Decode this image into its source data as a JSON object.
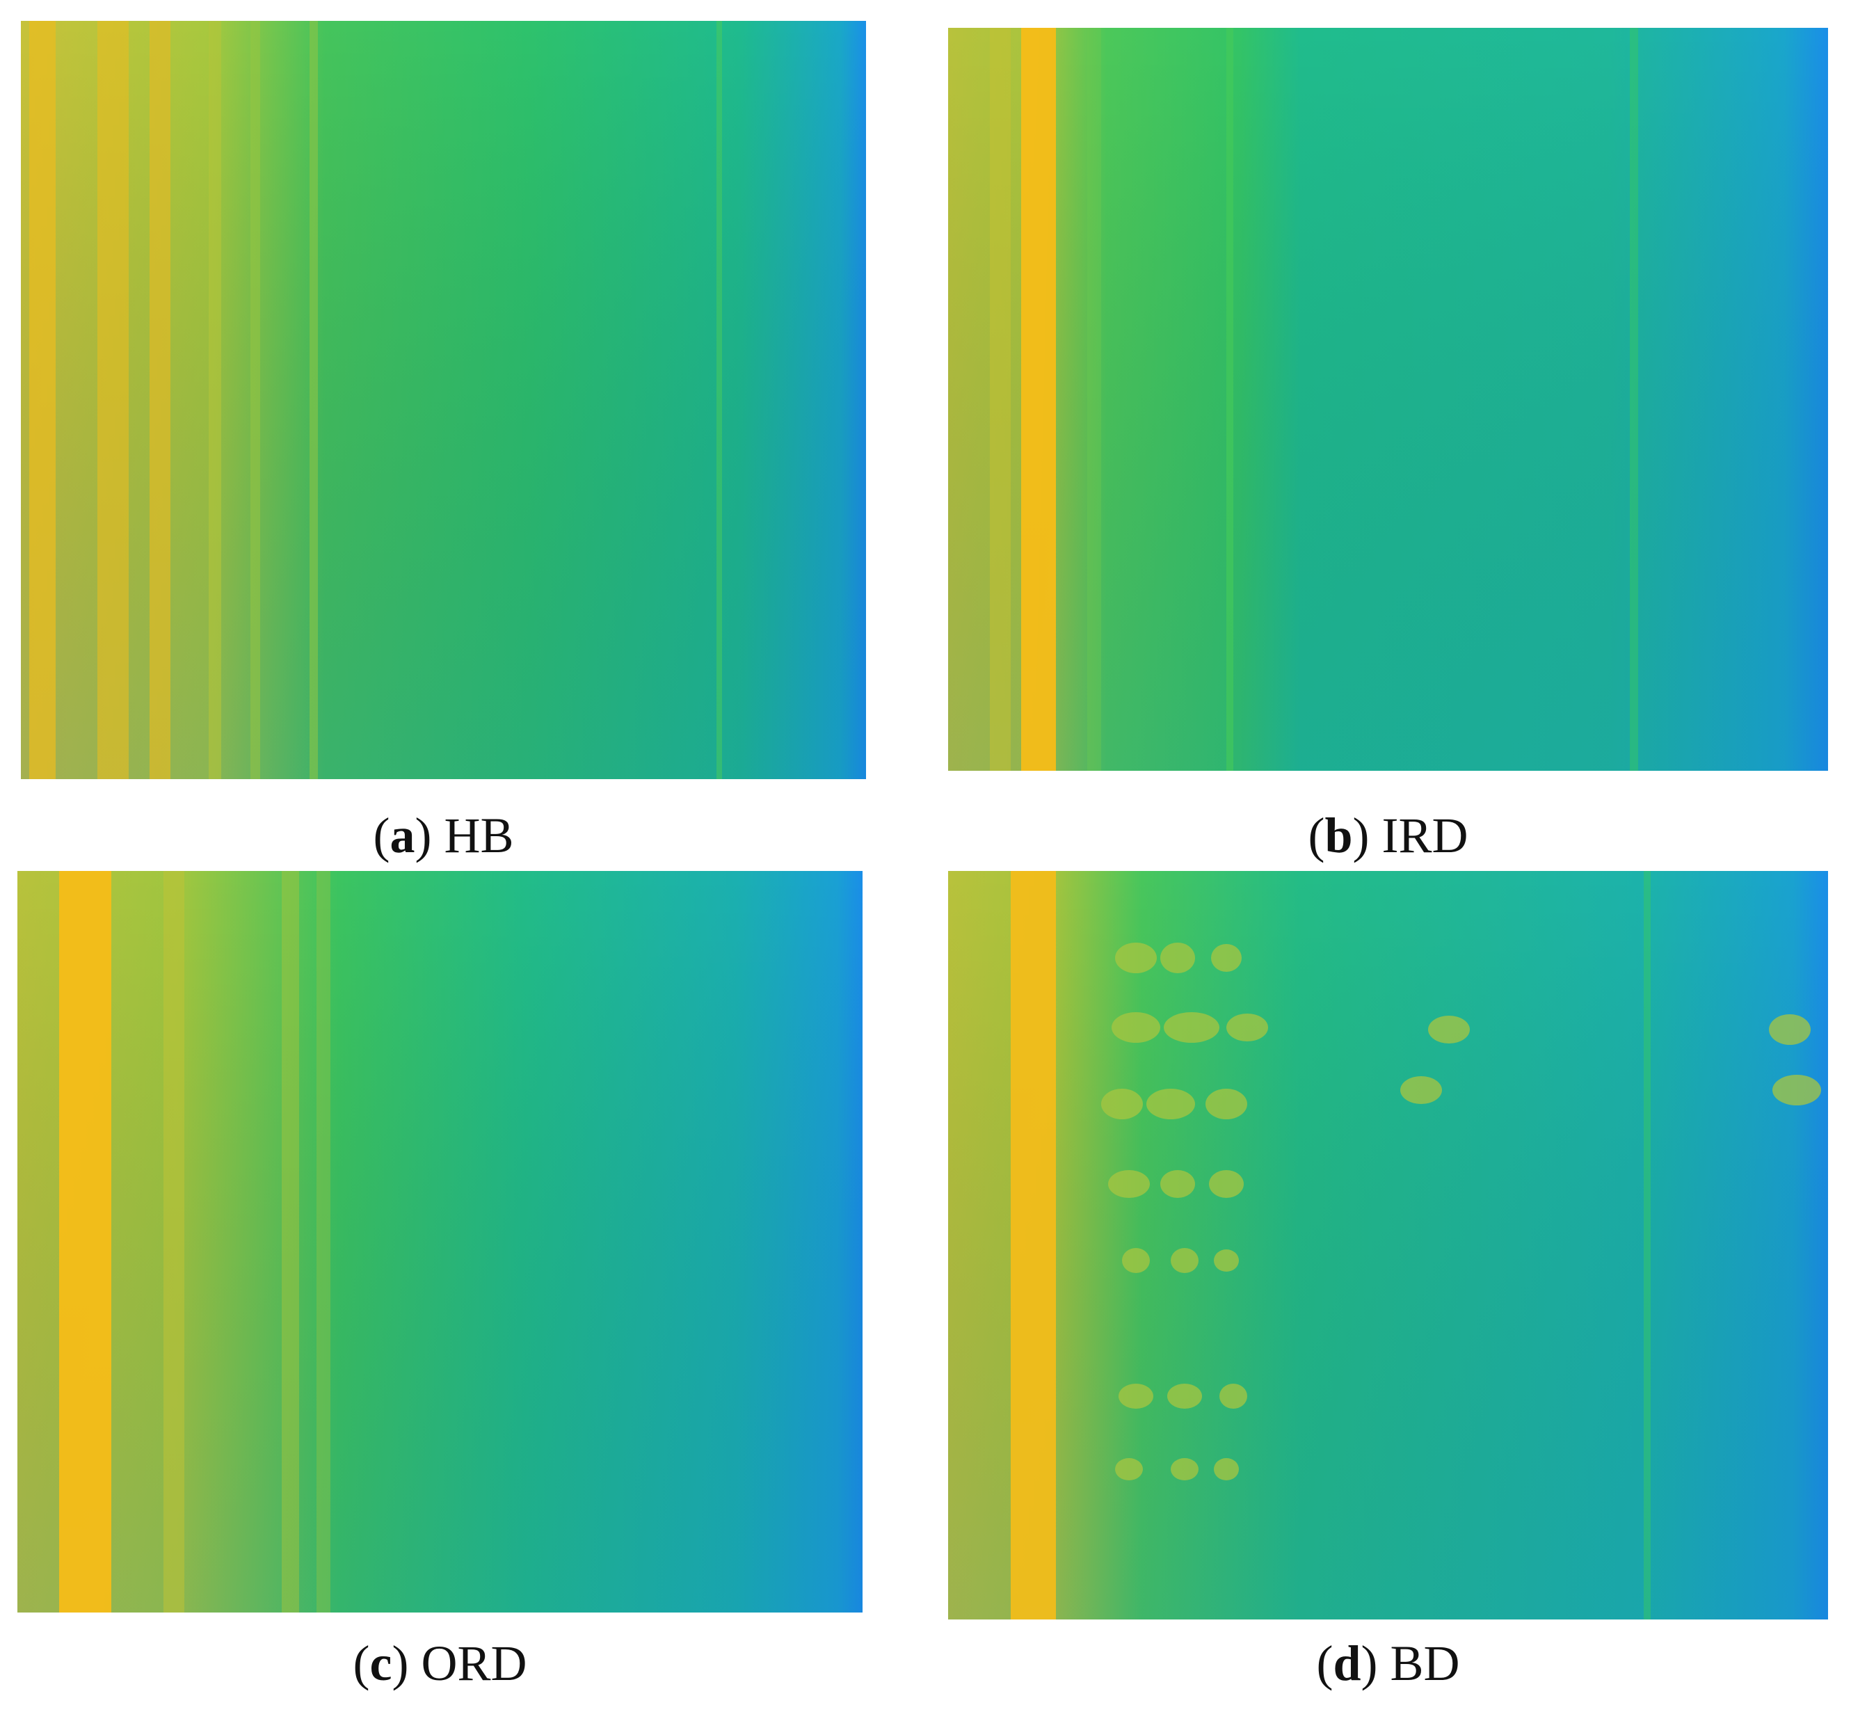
{
  "panels": [
    {
      "id": "a",
      "letter": "a",
      "label": "HB",
      "colors": [
        "#d9b820",
        "#2fc86a",
        "#1a9ee8"
      ]
    },
    {
      "id": "b",
      "letter": "b",
      "label": "IRD",
      "colors": [
        "#f0b818",
        "#2fc86a",
        "#1a9ee8"
      ]
    },
    {
      "id": "c",
      "letter": "c",
      "label": "ORD",
      "colors": [
        "#f0b818",
        "#2fc86a",
        "#1a9ee8"
      ]
    },
    {
      "id": "d",
      "letter": "d",
      "label": "BD",
      "colors": [
        "#f0b818",
        "#2fc86a",
        "#1a9ee8"
      ]
    }
  ]
}
